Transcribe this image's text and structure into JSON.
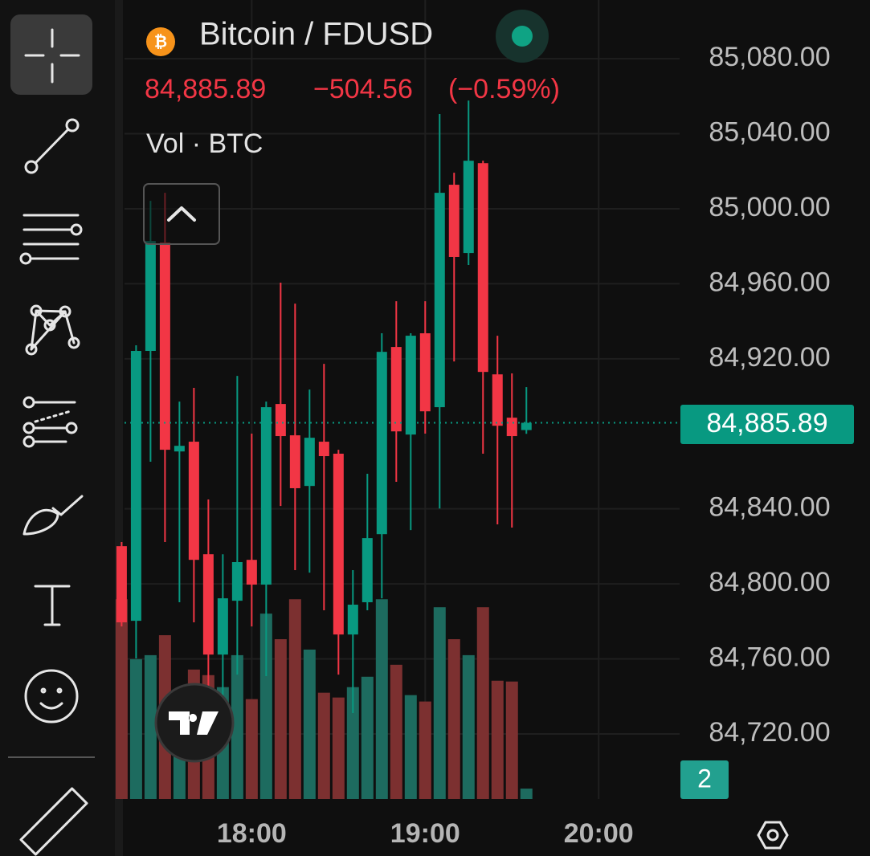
{
  "chart_data": {
    "type": "candlestick",
    "title": "Bitcoin / FDUSD",
    "last_price": {
      "value": 84885.89,
      "label": "84,885.89"
    },
    "change": {
      "value": -504.56,
      "label": "−504.56"
    },
    "change_pct": {
      "value": -0.59,
      "label": "(−0.59%)"
    },
    "volume_label": "Vol · BTC",
    "up_color": "#089981",
    "down_color": "#f23645",
    "volume_up_color": "#1d6b5f",
    "volume_down_color": "#7c3030",
    "x": [
      "17:15",
      "17:20",
      "17:25",
      "17:30",
      "17:35",
      "17:40",
      "17:45",
      "17:50",
      "17:55",
      "18:00",
      "18:05",
      "18:10",
      "18:15",
      "18:20",
      "18:25",
      "18:30",
      "18:35",
      "18:40",
      "18:45",
      "18:50",
      "18:55",
      "19:00",
      "19:05",
      "19:10",
      "19:15",
      "19:20",
      "19:25",
      "19:30",
      "19:35"
    ],
    "open": [
      84820.1,
      84780.3,
      84924.2,
      84982.0,
      84870.6,
      84875.8,
      84815.8,
      84762.3,
      84791.0,
      84812.8,
      84799.6,
      84895.9,
      84879.2,
      84852.2,
      84875.8,
      84869.4,
      84773.0,
      84790.2,
      84826.5,
      84926.3,
      84879.6,
      84933.6,
      84894.2,
      85012.8,
      84976.4,
      85024.3,
      84911.7,
      84888.6,
      84882.0
    ],
    "high": [
      84822.3,
      84927.2,
      85004.2,
      85008.5,
      84897.2,
      84904.5,
      84845.0,
      84815.8,
      84910.9,
      84880.1,
      84897.2,
      84960.6,
      84949.4,
      84903.6,
      84917.3,
      84871.5,
      84807.3,
      84858.7,
      84933.6,
      84950.7,
      84933.6,
      84950.7,
      85050.5,
      85019.2,
      85057.7,
      85025.6,
      84932.3,
      84912.2,
      84904.9
    ],
    "low": [
      84777.3,
      84760.2,
      84865.1,
      84822.3,
      84790.2,
      84779.5,
      84745.2,
      84738.8,
      84751.6,
      84777.3,
      84750.8,
      84841.5,
      84807.3,
      84806.0,
      84785.9,
      84751.6,
      84731.1,
      84785.9,
      84792.3,
      84854.4,
      84828.7,
      84880.1,
      84840.2,
      84918.6,
      84970.0,
      84869.4,
      84831.7,
      84830.0,
      84880.0
    ],
    "close": [
      84779.5,
      84924.2,
      84982.8,
      84871.5,
      84873.6,
      84812.8,
      84762.3,
      84792.3,
      84811.6,
      84799.6,
      84894.2,
      84878.8,
      84851.0,
      84877.9,
      84868.1,
      84773.0,
      84788.9,
      84824.4,
      84923.7,
      84881.3,
      84932.3,
      84892.0,
      85008.5,
      84974.3,
      85025.6,
      84913.0,
      84884.3,
      84878.8,
      84885.89
    ],
    "volume": [
      250,
      175,
      180,
      205,
      110,
      162,
      155,
      140,
      180,
      125,
      232,
      200,
      250,
      187,
      133,
      127,
      140,
      153,
      250,
      168,
      130,
      122,
      240,
      200,
      180,
      240,
      148,
      147,
      13
    ],
    "volume_lim": [
      0,
      1000
    ],
    "ylim": [
      84685.3,
      85111.3
    ],
    "yticks": [
      {
        "value": 84720,
        "label": "84,720.00"
      },
      {
        "value": 84760,
        "label": "84,760.00"
      },
      {
        "value": 84800,
        "label": "84,800.00"
      },
      {
        "value": 84840,
        "label": "84,840.00"
      },
      {
        "value": 84920,
        "label": "84,920.00"
      },
      {
        "value": 84960,
        "label": "84,960.00"
      },
      {
        "value": 85000,
        "label": "85,000.00"
      },
      {
        "value": 85040,
        "label": "85,040.00"
      },
      {
        "value": 85080,
        "label": "85,080.00"
      }
    ],
    "xlim": [
      "17:16",
      "20:28"
    ],
    "xticks": [
      "18:00",
      "19:00",
      "20:00"
    ],
    "grid": true
  },
  "badge": "2"
}
